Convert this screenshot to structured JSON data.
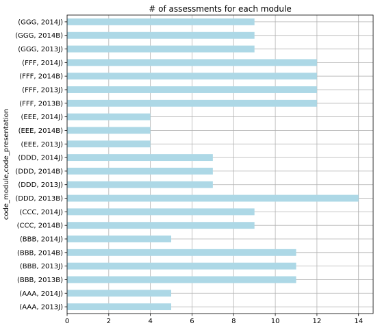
{
  "chart_data": {
    "type": "bar",
    "orientation": "horizontal",
    "title": "# of assessments for each module",
    "xlabel": "",
    "ylabel": "code_module,code_presentation",
    "xlim": [
      0,
      14.7
    ],
    "xticks": [
      0,
      2,
      4,
      6,
      8,
      10,
      12,
      14
    ],
    "grid": true,
    "bar_color": "#add8e6",
    "categories": [
      "(AAA, 2013J)",
      "(AAA, 2014J)",
      "(BBB, 2013B)",
      "(BBB, 2013J)",
      "(BBB, 2014B)",
      "(BBB, 2014J)",
      "(CCC, 2014B)",
      "(CCC, 2014J)",
      "(DDD, 2013B)",
      "(DDD, 2013J)",
      "(DDD, 2014B)",
      "(DDD, 2014J)",
      "(EEE, 2013J)",
      "(EEE, 2014B)",
      "(EEE, 2014J)",
      "(FFF, 2013B)",
      "(FFF, 2013J)",
      "(FFF, 2014B)",
      "(FFF, 2014J)",
      "(GGG, 2013J)",
      "(GGG, 2014B)",
      "(GGG, 2014J)"
    ],
    "values": [
      5,
      5,
      11,
      11,
      11,
      5,
      9,
      9,
      14,
      7,
      7,
      7,
      4,
      4,
      4,
      12,
      12,
      12,
      12,
      9,
      9,
      9
    ]
  }
}
